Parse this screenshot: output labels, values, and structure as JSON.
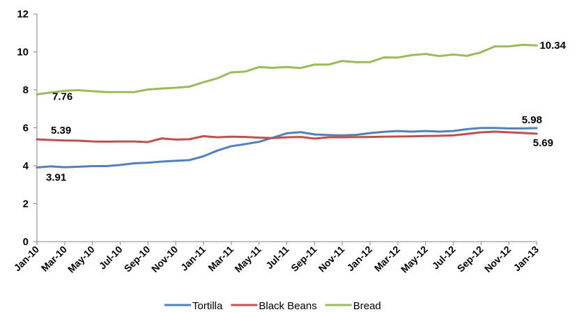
{
  "chart_data": {
    "type": "line",
    "title": "",
    "xlabel": "",
    "ylabel": "",
    "ylim": [
      0,
      12
    ],
    "yticks": [
      "0",
      "2",
      "4",
      "6",
      "8",
      "10",
      "12"
    ],
    "grid": false,
    "legend_position": "bottom",
    "x": [
      "Jan-10",
      "Feb-10",
      "Mar-10",
      "Apr-10",
      "May-10",
      "Jun-10",
      "Jul-10",
      "Aug-10",
      "Sep-10",
      "Oct-10",
      "Nov-10",
      "Dec-10",
      "Jan-11",
      "Feb-11",
      "Mar-11",
      "Apr-11",
      "May-11",
      "Jun-11",
      "Jul-11",
      "Aug-11",
      "Sep-11",
      "Oct-11",
      "Nov-11",
      "Dec-11",
      "Jan-12",
      "Feb-12",
      "Mar-12",
      "Apr-12",
      "May-12",
      "Jun-12",
      "Jul-12",
      "Aug-12",
      "Sep-12",
      "Oct-12",
      "Nov-12",
      "Dec-12",
      "Jan-13"
    ],
    "xtick_labels": [
      "Jan-10",
      "Mar-10",
      "May-10",
      "Jul-10",
      "Sep-10",
      "Nov-10",
      "Jan-11",
      "Mar-11",
      "May-11",
      "Jul-11",
      "Sep-11",
      "Nov-11",
      "Jan-12",
      "Mar-12",
      "May-12",
      "Jul-12",
      "Sep-12",
      "Nov-12",
      "Jan-13"
    ],
    "series": [
      {
        "name": "Tortilla",
        "color": "#4F81BD",
        "values": [
          3.91,
          3.97,
          3.92,
          3.95,
          3.98,
          3.98,
          4.04,
          4.13,
          4.16,
          4.22,
          4.26,
          4.3,
          4.5,
          4.8,
          5.03,
          5.14,
          5.26,
          5.48,
          5.71,
          5.77,
          5.65,
          5.62,
          5.6,
          5.63,
          5.72,
          5.79,
          5.83,
          5.8,
          5.83,
          5.8,
          5.83,
          5.93,
          5.99,
          5.99,
          5.97,
          5.97,
          5.98
        ],
        "labels": [
          {
            "index": 0,
            "text": "3.91"
          },
          {
            "index": 36,
            "text": "5.98"
          }
        ]
      },
      {
        "name": "Black Beans",
        "color": "#C0504D",
        "values": [
          5.39,
          5.36,
          5.33,
          5.32,
          5.28,
          5.27,
          5.28,
          5.28,
          5.25,
          5.44,
          5.38,
          5.4,
          5.56,
          5.5,
          5.53,
          5.52,
          5.48,
          5.46,
          5.5,
          5.52,
          5.43,
          5.5,
          5.5,
          5.51,
          5.52,
          5.53,
          5.54,
          5.55,
          5.57,
          5.58,
          5.6,
          5.68,
          5.76,
          5.8,
          5.76,
          5.73,
          5.69
        ],
        "labels": [
          {
            "index": 0,
            "text": "5.39"
          },
          {
            "index": 36,
            "text": "5.69"
          }
        ]
      },
      {
        "name": "Bread",
        "color": "#9BBB59",
        "values": [
          7.76,
          7.86,
          7.95,
          7.98,
          7.93,
          7.88,
          7.88,
          7.88,
          8.02,
          8.07,
          8.11,
          8.17,
          8.4,
          8.61,
          8.92,
          8.96,
          9.2,
          9.16,
          9.2,
          9.15,
          9.33,
          9.33,
          9.52,
          9.46,
          9.46,
          9.71,
          9.7,
          9.83,
          9.89,
          9.78,
          9.86,
          9.79,
          9.98,
          10.29,
          10.29,
          10.37,
          10.34
        ],
        "labels": [
          {
            "index": 0,
            "text": "7.76"
          },
          {
            "index": 36,
            "text": "10.34"
          }
        ]
      }
    ]
  }
}
